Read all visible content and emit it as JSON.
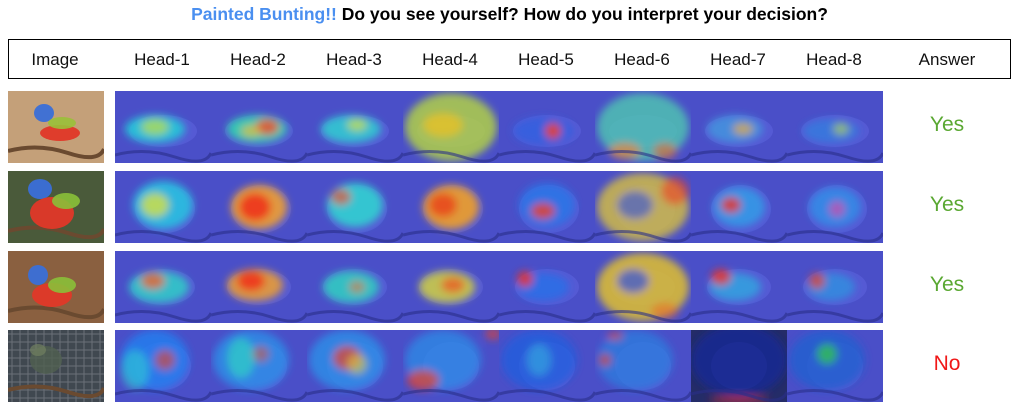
{
  "title": {
    "highlight": "Painted Bunting!!",
    "rest": " Do you see yourself? How do you interpret your decision?"
  },
  "columns": [
    "Image",
    "Head-1",
    "Head-2",
    "Head-3",
    "Head-4",
    "Head-5",
    "Head-6",
    "Head-7",
    "Head-8",
    "Answer"
  ],
  "rows": [
    {
      "answer": "Yes",
      "answer_color": "#5aa832"
    },
    {
      "answer": "Yes",
      "answer_color": "#5aa832"
    },
    {
      "answer": "Yes",
      "answer_color": "#5aa832"
    },
    {
      "answer": "No",
      "answer_color": "#f01818"
    }
  ],
  "colors": {
    "title_highlight": "#4a8ff0",
    "heatmap_base": "#4a4fc8",
    "yes": "#5aa832",
    "no": "#f01818"
  }
}
